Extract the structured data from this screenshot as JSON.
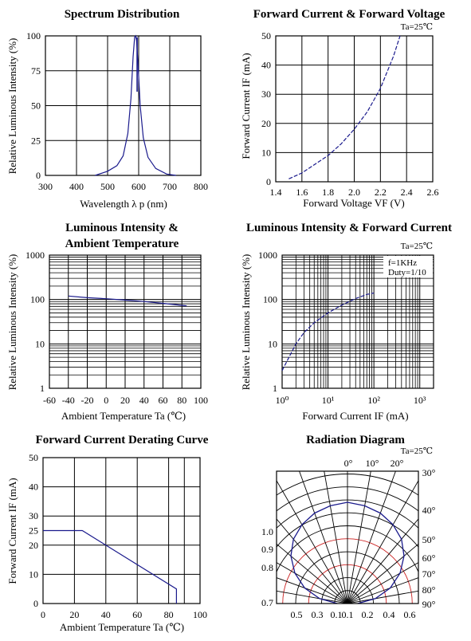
{
  "colors": {
    "curve": "#1a1a8c",
    "grid": "#000000",
    "radiation_inner": "#cc2222"
  },
  "charts": [
    {
      "id": "spectrum",
      "title": "Spectrum Distribution",
      "note": "",
      "xlabel": "Wavelength  λ p (nm)",
      "ylabel": "Relative Luminous Intensity (%)",
      "xticks": [
        "300",
        "400",
        "500",
        "600",
        "700",
        "800"
      ],
      "yticks": [
        "0",
        "25",
        "50",
        "75",
        "100"
      ]
    },
    {
      "id": "iv",
      "title": "Forward Current & Forward Voltage",
      "note": "Ta=25℃",
      "xlabel": "Forward Voltage  VF (V)",
      "ylabel": "Forward Current IF (mA)",
      "xticks": [
        "1.4",
        "1.6",
        "1.8",
        "2.0",
        "2.2",
        "2.4",
        "2.6"
      ],
      "yticks": [
        "0",
        "10",
        "20",
        "30",
        "40",
        "50"
      ]
    },
    {
      "id": "temp",
      "title": "Luminous Intensity &",
      "title2": "Ambient Temperature",
      "note": "",
      "xlabel": "Ambient Temperature Ta (℃)",
      "ylabel": "Relative Luminous Intensity (%)",
      "xticks": [
        "-60",
        "-40",
        "-20",
        "0",
        "20",
        "40",
        "60",
        "80",
        "100"
      ],
      "yticks": [
        "1",
        "10",
        "100",
        "1000"
      ]
    },
    {
      "id": "intensity_current",
      "title": "Luminous Intensity & Forward Current",
      "note": "Ta=25℃",
      "note2": "f=1KHz",
      "note3": "Duty=1/10",
      "xlabel": "Forward Current IF (mA)",
      "ylabel": "Relative Luminous Intensity (%)",
      "xticks": [
        "10⁰",
        "10¹",
        "10²",
        "10³"
      ],
      "yticks": [
        "1",
        "10",
        "100",
        "1000"
      ]
    },
    {
      "id": "derating",
      "title": "Forward Current Derating Curve",
      "note": "",
      "xlabel": "Ambient Temperature Ta (℃)",
      "ylabel": "Forward Current IF (mA)",
      "xticks": [
        "0",
        "20",
        "40",
        "60",
        "80",
        "100"
      ],
      "yticks": [
        "0",
        "10",
        "20",
        "25",
        "30",
        "40",
        "50"
      ]
    },
    {
      "id": "radiation",
      "title": "Radiation Diagram",
      "note": "Ta=25℃",
      "angle_labels": [
        "0°",
        "10°",
        "20°",
        "30°",
        "40°",
        "50°",
        "60°",
        "70°",
        "80°",
        "90°"
      ],
      "radial_labels": [
        "1.0",
        "0.9",
        "0.8",
        "0.7"
      ],
      "bottom_labels": [
        "0.5",
        "0.3",
        "0.1",
        "0.1",
        "0.2",
        "0.4",
        "0.6"
      ]
    }
  ],
  "chart_data": [
    {
      "type": "line",
      "title": "Spectrum Distribution",
      "xlabel": "Wavelength  λ p (nm)",
      "ylabel": "Relative Luminous Intensity (%)",
      "xlim": [
        300,
        800
      ],
      "ylim": [
        0,
        100
      ],
      "series": [
        {
          "x": [
            460,
            500,
            530,
            550,
            565,
            575,
            582,
            587,
            590,
            593,
            598,
            605,
            615,
            630,
            655,
            690,
            720
          ],
          "y": [
            0,
            3,
            7,
            14,
            30,
            55,
            85,
            99,
            100,
            97,
            80,
            50,
            27,
            13,
            5,
            1,
            0
          ]
        }
      ]
    },
    {
      "type": "line",
      "title": "Forward Current & Forward Voltage",
      "xlabel": "Forward Voltage  VF (V)",
      "ylabel": "Forward Current IF (mA)",
      "xlim": [
        1.4,
        2.6
      ],
      "ylim": [
        0,
        50
      ],
      "series": [
        {
          "x": [
            1.5,
            1.6,
            1.7,
            1.8,
            1.9,
            2.0,
            2.1,
            2.2,
            2.3,
            2.35
          ],
          "y": [
            1,
            3,
            6,
            9,
            13,
            18,
            24,
            32,
            43,
            50
          ]
        }
      ]
    },
    {
      "type": "line",
      "title": "Luminous Intensity & Ambient Temperature",
      "xlabel": "Ambient Temperature Ta (℃)",
      "ylabel": "Relative Luminous Intensity (%)",
      "xlim": [
        -60,
        100
      ],
      "ylim": [
        1,
        1000
      ],
      "yscale": "log",
      "series": [
        {
          "x": [
            -40,
            -20,
            0,
            20,
            40,
            60,
            85
          ],
          "y": [
            120,
            110,
            104,
            97,
            90,
            82,
            72
          ]
        }
      ]
    },
    {
      "type": "line",
      "title": "Luminous Intensity & Forward Current",
      "xlabel": "Forward Current IF (mA)",
      "ylabel": "Relative Luminous Intensity (%)",
      "xlim": [
        1,
        2000
      ],
      "ylim": [
        1,
        1000
      ],
      "xscale": "log",
      "yscale": "log",
      "series": [
        {
          "x": [
            1,
            2,
            3,
            5,
            10,
            20,
            40,
            70,
            100
          ],
          "y": [
            2.5,
            10,
            18,
            30,
            50,
            75,
            105,
            130,
            140
          ]
        }
      ]
    },
    {
      "type": "line",
      "title": "Forward Current Derating Curve",
      "xlabel": "Ambient Temperature Ta (℃)",
      "ylabel": "Forward Current IF (mA)",
      "xlim": [
        0,
        100
      ],
      "ylim": [
        0,
        50
      ],
      "series": [
        {
          "x": [
            0,
            25,
            85,
            85
          ],
          "y": [
            25,
            25,
            5,
            0
          ]
        }
      ]
    },
    {
      "type": "polar",
      "title": "Radiation Diagram",
      "angles_deg": [
        0,
        10,
        20,
        30,
        40,
        50,
        60,
        70,
        80,
        90
      ],
      "values": [
        1.0,
        0.98,
        0.95,
        0.9,
        0.83,
        0.73,
        0.6,
        0.45,
        0.28,
        0.1
      ]
    }
  ]
}
